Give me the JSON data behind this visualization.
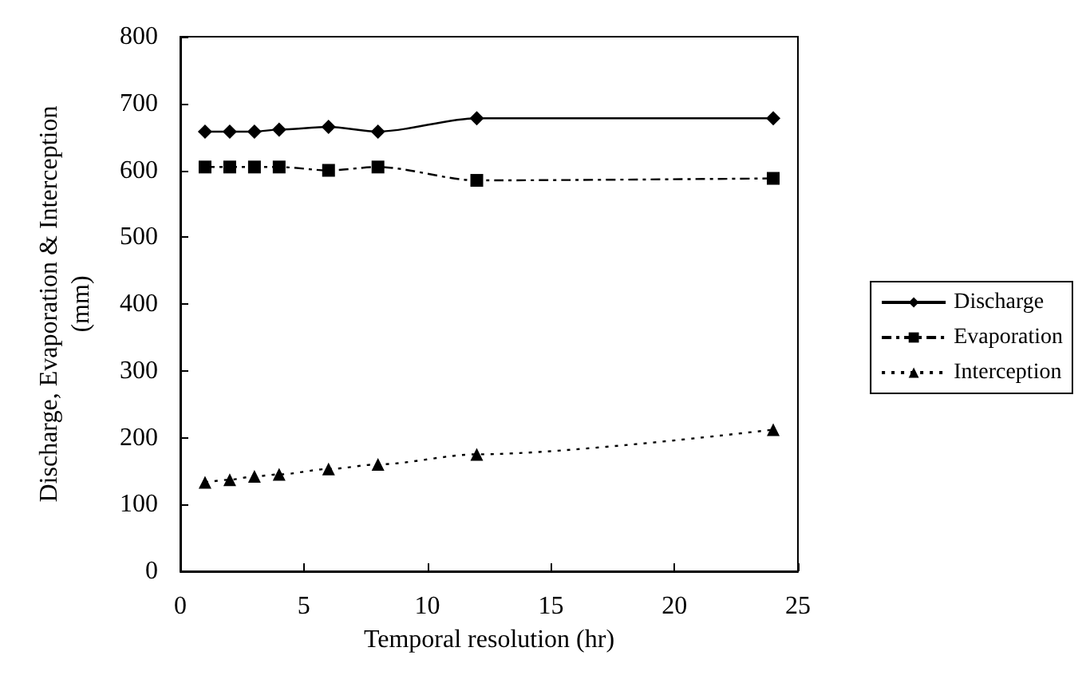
{
  "chart_data": {
    "type": "line",
    "xlabel": "Temporal resolution (hr)",
    "ylabel": "Discharge, Evaporation & Interception\n(mm)",
    "xlim": [
      0,
      25
    ],
    "xticks": [
      0,
      5,
      10,
      15,
      20,
      25
    ],
    "ylim": [
      0,
      800
    ],
    "yticks": [
      0,
      100,
      200,
      300,
      400,
      500,
      600,
      700,
      800
    ],
    "grid": false,
    "legend": "right",
    "x": [
      1,
      2,
      3,
      4,
      6,
      8,
      12,
      24
    ],
    "series": [
      {
        "name": "Discharge",
        "color": "#000000",
        "marker": "diamond",
        "line_style": "solid",
        "values": [
          658,
          658,
          658,
          661,
          665,
          658,
          678,
          678
        ]
      },
      {
        "name": "Evaporation",
        "color": "#000000",
        "marker": "square",
        "line_style": "dashed",
        "values": [
          605,
          605,
          605,
          605,
          600,
          605,
          585,
          588
        ]
      },
      {
        "name": "Interception",
        "color": "#000000",
        "marker": "triangle",
        "line_style": "dotted",
        "values": [
          133,
          137,
          142,
          145,
          153,
          160,
          175,
          212
        ]
      }
    ]
  }
}
